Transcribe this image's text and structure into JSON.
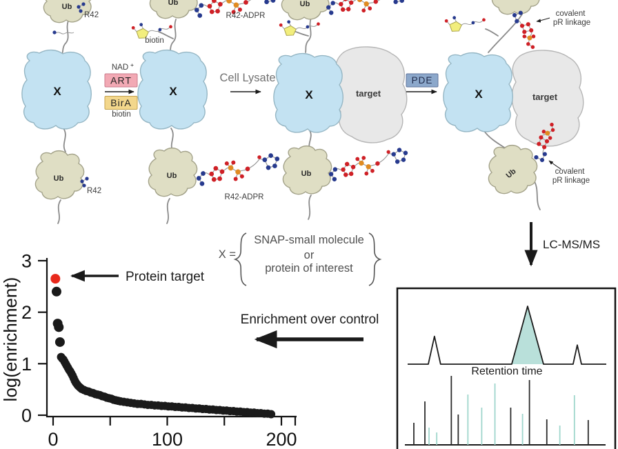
{
  "diagram": {
    "ub": "Ub",
    "x": "X",
    "target": "target",
    "r42": "R42",
    "r42_adpr": "R42-ADPR",
    "biotin": "biotin",
    "nad": "NAD",
    "nad_plus": "+",
    "art": "ART",
    "bira": "BirA",
    "cell_lysate": "Cell Lysate",
    "pde": "PDE",
    "covalent": "covalent",
    "pr_linkage": "pR linkage",
    "lcmsms": "LC-MS/MS"
  },
  "x_definition": {
    "lhs": "X =",
    "line1": "SNAP-small molecule",
    "line2": "or",
    "line3": "protein of interest",
    "brace_open": "{",
    "brace_close": "}"
  },
  "annotations": {
    "protein_target": "Protein target",
    "enrichment": "Enrichment over control"
  },
  "colors": {
    "x_protein": "#c3e2f2",
    "x_protein_stroke": "#95b6c4",
    "ub": "#dfdec4",
    "ub_stroke": "#a3a289",
    "target": "#e8e8e8",
    "target_stroke": "#b5b5b5",
    "art_box": "#f2a9b4",
    "bira_box": "#f3d78c",
    "pde_box": "#8ca8cb",
    "red_atom": "#cf2026",
    "orange_atom": "#e08b22",
    "blue_atom": "#273a8e",
    "teal": "#9fd6cc",
    "chromatogram_fill": "#b9e0da",
    "highlight_red": "#e8291c",
    "spectrum_dark": "#2a2a2a"
  },
  "chart_data": [
    {
      "id": "enrichment_plot",
      "type": "scatter",
      "title": "",
      "xlabel": "",
      "ylabel": "log(enrichment)",
      "xlim": [
        0,
        210
      ],
      "ylim": [
        0,
        3.1
      ],
      "xticks_major": [
        0,
        100,
        200
      ],
      "xticks_minor": [
        50,
        150
      ],
      "yticks": [
        0,
        1,
        2,
        3
      ],
      "grid": false,
      "point_color": "#1a1a1a",
      "highlight_point": {
        "x": 2,
        "y": 2.65,
        "color": "#e8291c",
        "label": "Protein target"
      },
      "points": [
        [
          3,
          2.4
        ],
        [
          4,
          1.78
        ],
        [
          5,
          1.71
        ],
        [
          6,
          1.42
        ],
        [
          7,
          1.13
        ],
        [
          8,
          1.1
        ],
        [
          9,
          1.08
        ],
        [
          10,
          1.04
        ],
        [
          11,
          1.0
        ],
        [
          12,
          0.96
        ],
        [
          13,
          0.92
        ],
        [
          14,
          0.88
        ],
        [
          15,
          0.85
        ],
        [
          16,
          0.81
        ],
        [
          17,
          0.77
        ],
        [
          18,
          0.72
        ],
        [
          19,
          0.67
        ],
        [
          20,
          0.63
        ],
        [
          21,
          0.6
        ],
        [
          22,
          0.57
        ],
        [
          23,
          0.55
        ],
        [
          24,
          0.53
        ],
        [
          25,
          0.51
        ],
        [
          27,
          0.49
        ],
        [
          29,
          0.47
        ],
        [
          31,
          0.46
        ],
        [
          33,
          0.44
        ],
        [
          35,
          0.43
        ],
        [
          37,
          0.41
        ],
        [
          39,
          0.4
        ],
        [
          41,
          0.39
        ],
        [
          43,
          0.37
        ],
        [
          45,
          0.36
        ],
        [
          47,
          0.34
        ],
        [
          49,
          0.33
        ],
        [
          51,
          0.32
        ],
        [
          53,
          0.3
        ],
        [
          55,
          0.29
        ],
        [
          57,
          0.28
        ],
        [
          59,
          0.27
        ],
        [
          62,
          0.26
        ],
        [
          65,
          0.25
        ],
        [
          68,
          0.24
        ],
        [
          71,
          0.23
        ],
        [
          74,
          0.22
        ],
        [
          77,
          0.22
        ],
        [
          80,
          0.21
        ],
        [
          83,
          0.2
        ],
        [
          86,
          0.2
        ],
        [
          89,
          0.19
        ],
        [
          92,
          0.19
        ],
        [
          95,
          0.18
        ],
        [
          98,
          0.18
        ],
        [
          101,
          0.17
        ],
        [
          104,
          0.17
        ],
        [
          107,
          0.16
        ],
        [
          110,
          0.16
        ],
        [
          113,
          0.15
        ],
        [
          116,
          0.15
        ],
        [
          119,
          0.14
        ],
        [
          122,
          0.14
        ],
        [
          125,
          0.13
        ],
        [
          128,
          0.13
        ],
        [
          131,
          0.12
        ],
        [
          134,
          0.12
        ],
        [
          137,
          0.11
        ],
        [
          140,
          0.11
        ],
        [
          143,
          0.1
        ],
        [
          146,
          0.1
        ],
        [
          149,
          0.09
        ],
        [
          152,
          0.09
        ],
        [
          155,
          0.08
        ],
        [
          158,
          0.08
        ],
        [
          161,
          0.07
        ],
        [
          164,
          0.07
        ],
        [
          167,
          0.06
        ],
        [
          170,
          0.06
        ],
        [
          173,
          0.05
        ],
        [
          176,
          0.05
        ],
        [
          179,
          0.04
        ],
        [
          182,
          0.04
        ],
        [
          185,
          0.03
        ],
        [
          188,
          0.03
        ],
        [
          191,
          0.02
        ]
      ]
    },
    {
      "id": "chromatogram",
      "type": "line",
      "xlabel": "Retention time",
      "fill_color": "#b9e0da",
      "peaks": [
        {
          "x": 0.135,
          "height": 0.48,
          "half_width": 0.031,
          "filled": false
        },
        {
          "x": 0.604,
          "height": 1.0,
          "half_width": 0.08,
          "filled": true
        },
        {
          "x": 0.854,
          "height": 0.33,
          "half_width": 0.021,
          "filled": false
        }
      ]
    },
    {
      "id": "ms_spectrum",
      "type": "bar",
      "note": "peaks are [relative_mz, relative_intensity, color] with color d=dark t=teal",
      "peaks": [
        [
          0.035,
          0.32,
          "d"
        ],
        [
          0.091,
          0.63,
          "d"
        ],
        [
          0.112,
          0.25,
          "t"
        ],
        [
          0.151,
          0.18,
          "t"
        ],
        [
          0.225,
          1.0,
          "d"
        ],
        [
          0.26,
          0.44,
          "d"
        ],
        [
          0.309,
          0.73,
          "t"
        ],
        [
          0.379,
          0.54,
          "t"
        ],
        [
          0.446,
          0.89,
          "t"
        ],
        [
          0.526,
          0.54,
          "d"
        ],
        [
          0.586,
          0.45,
          "t"
        ],
        [
          0.621,
          0.94,
          "d"
        ],
        [
          0.709,
          0.37,
          "d"
        ],
        [
          0.775,
          0.28,
          "t"
        ],
        [
          0.849,
          0.72,
          "t"
        ],
        [
          0.919,
          0.36,
          "d"
        ]
      ]
    }
  ]
}
